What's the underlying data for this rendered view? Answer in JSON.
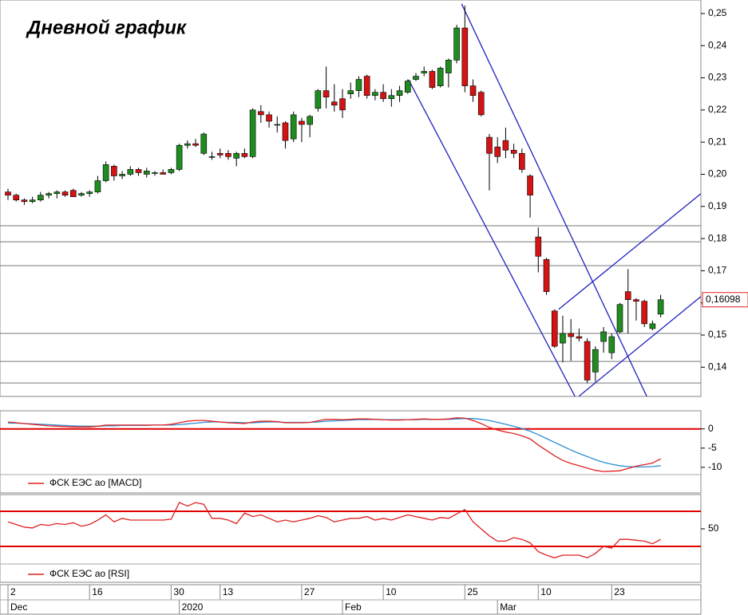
{
  "chart_data": [
    {
      "type": "candlestick",
      "title": "Дневной график",
      "categories": [
        "2",
        null,
        null,
        null,
        null,
        null,
        null,
        null,
        null,
        null,
        "16",
        null,
        null,
        null,
        null,
        null,
        null,
        null,
        null,
        null,
        "30",
        null,
        null,
        null,
        null,
        null,
        "13",
        null,
        null,
        null,
        null,
        null,
        null,
        null,
        null,
        null,
        "27",
        null,
        null,
        null,
        null,
        null,
        null,
        null,
        null,
        null,
        "10",
        null,
        null,
        null,
        null,
        null,
        null,
        null,
        null,
        null,
        "25",
        null,
        null,
        null,
        null,
        null,
        null,
        null,
        null,
        "10",
        null,
        null,
        null,
        null,
        null,
        null,
        null,
        null,
        "23",
        null,
        null,
        null,
        null,
        null,
        null
      ],
      "month_labels": [
        {
          "index": 0,
          "label": "Dec"
        },
        {
          "index": 21,
          "label": "2020"
        },
        {
          "index": 41,
          "label": "Feb"
        },
        {
          "index": 60,
          "label": "Mar"
        }
      ],
      "open": [
        0.1945,
        0.1935,
        0.192,
        0.1915,
        0.192,
        0.1935,
        0.194,
        0.1945,
        0.195,
        0.1935,
        0.194,
        0.1945,
        0.198,
        0.2025,
        0.1995,
        0.2,
        0.2015,
        0.2,
        0.2005,
        0.2005,
        0.2005,
        0.2015,
        0.209,
        0.2095,
        0.2065,
        0.2055,
        0.2065,
        0.2065,
        0.205,
        0.2065,
        0.2055,
        0.2195,
        0.2185,
        0.2155,
        0.216,
        0.211,
        0.2165,
        0.2155,
        0.2205,
        0.226,
        0.2225,
        0.2235,
        0.225,
        0.226,
        0.2305,
        0.2245,
        0.2255,
        0.2235,
        0.2245,
        0.2255,
        0.2295,
        0.2315,
        0.232,
        0.2275,
        0.2315,
        0.2355,
        0.2455,
        0.2275,
        0.2255,
        0.2115,
        0.2085,
        0.2105,
        0.2075,
        0.2065,
        0.1995,
        0.1805,
        0.1735,
        0.1575,
        0.1475,
        0.1505,
        0.1495,
        0.148,
        0.1385,
        0.148,
        0.1445,
        0.151,
        0.1635,
        0.161,
        0.1605,
        0.152,
        0.1565
      ],
      "high": [
        0.1955,
        0.194,
        0.1925,
        0.193,
        0.1945,
        0.1945,
        0.195,
        0.195,
        0.1955,
        0.1945,
        0.195,
        0.1995,
        0.204,
        0.203,
        0.201,
        0.2025,
        0.202,
        0.202,
        0.201,
        0.2015,
        0.202,
        0.2095,
        0.2105,
        0.211,
        0.213,
        0.207,
        0.208,
        0.2075,
        0.207,
        0.208,
        0.2205,
        0.2215,
        0.2195,
        0.218,
        0.2165,
        0.2195,
        0.2175,
        0.2185,
        0.2265,
        0.2335,
        0.228,
        0.2265,
        0.2285,
        0.2305,
        0.231,
        0.2265,
        0.228,
        0.2265,
        0.2275,
        0.2295,
        0.2315,
        0.2335,
        0.2325,
        0.2335,
        0.236,
        0.2465,
        0.2525,
        0.2295,
        0.226,
        0.2125,
        0.2115,
        0.2145,
        0.2095,
        0.208,
        0.2,
        0.1835,
        0.174,
        0.158,
        0.156,
        0.155,
        0.152,
        0.149,
        0.1465,
        0.1525,
        0.1505,
        0.16,
        0.1705,
        0.1615,
        0.161,
        0.1545,
        0.1625
      ],
      "low": [
        0.192,
        0.1915,
        0.1905,
        0.191,
        0.1915,
        0.1925,
        0.1925,
        0.193,
        0.193,
        0.193,
        0.193,
        0.194,
        0.1975,
        0.198,
        0.1985,
        0.1995,
        0.1995,
        0.199,
        0.1995,
        0.2,
        0.2,
        0.201,
        0.208,
        0.2085,
        0.206,
        0.2045,
        0.205,
        0.2045,
        0.2025,
        0.205,
        0.205,
        0.216,
        0.2145,
        0.213,
        0.208,
        0.21,
        0.21,
        0.2115,
        0.2195,
        0.2205,
        0.2195,
        0.2175,
        0.2235,
        0.224,
        0.2235,
        0.223,
        0.2225,
        0.221,
        0.2225,
        0.225,
        0.229,
        0.2305,
        0.2265,
        0.227,
        0.227,
        0.2345,
        0.2255,
        0.2225,
        0.218,
        0.195,
        0.2035,
        0.205,
        0.205,
        0.2005,
        0.1865,
        0.1695,
        0.1625,
        0.146,
        0.1415,
        0.142,
        0.148,
        0.135,
        0.1355,
        0.1445,
        0.1425,
        0.1505,
        0.1505,
        0.1545,
        0.1525,
        0.1515,
        0.1555
      ],
      "close": [
        0.1935,
        0.192,
        0.1915,
        0.192,
        0.1935,
        0.194,
        0.1945,
        0.1935,
        0.193,
        0.194,
        0.1945,
        0.198,
        0.203,
        0.1995,
        0.2,
        0.2015,
        0.2005,
        0.201,
        0.2005,
        0.2,
        0.2015,
        0.209,
        0.2095,
        0.209,
        0.2125,
        0.2055,
        0.206,
        0.2055,
        0.2065,
        0.2055,
        0.22,
        0.2185,
        0.2165,
        0.2155,
        0.2105,
        0.2185,
        0.2155,
        0.218,
        0.226,
        0.224,
        0.2215,
        0.22,
        0.226,
        0.2295,
        0.2245,
        0.2255,
        0.2235,
        0.2245,
        0.226,
        0.229,
        0.2305,
        0.232,
        0.227,
        0.233,
        0.2355,
        0.2455,
        0.2275,
        0.2245,
        0.2185,
        0.2065,
        0.2055,
        0.2075,
        0.2065,
        0.2015,
        0.1935,
        0.1745,
        0.1635,
        0.1465,
        0.1505,
        0.1495,
        0.149,
        0.136,
        0.1455,
        0.151,
        0.1495,
        0.1595,
        0.161,
        0.1605,
        0.1535,
        0.1535,
        0.16098
      ],
      "up_color": "#1e8c1e",
      "down_color": "#d41414",
      "last_price_label": "0,16098",
      "last_price_color": "#e02020",
      "support_levels": [
        0.184,
        0.179,
        0.1716,
        0.1505,
        0.1418,
        0.1351
      ],
      "trend_lines": [
        {
          "x": [
            55.6,
            78.3
          ],
          "y": [
            0.253,
            0.1309
          ]
        },
        {
          "x": [
            49.1,
            69.5
          ],
          "y": [
            0.2294,
            0.1309
          ]
        },
        {
          "x": [
            67.5,
            84.9
          ],
          "y": [
            0.158,
            0.1939
          ]
        },
        {
          "x": [
            70,
            84.9
          ],
          "y": [
            0.131,
            0.1619
          ]
        }
      ],
      "trend_color": "#2020c0",
      "ylim": [
        0.1309,
        0.2542
      ],
      "yticks": [
        {
          "value": 0.25,
          "label": "0,25"
        },
        {
          "value": 0.24,
          "label": "0,24"
        },
        {
          "value": 0.23,
          "label": "0,23"
        },
        {
          "value": 0.22,
          "label": "0,22"
        },
        {
          "value": 0.21,
          "label": "0,21"
        },
        {
          "value": 0.2,
          "label": "0,20"
        },
        {
          "value": 0.19,
          "label": "0,19"
        },
        {
          "value": 0.18,
          "label": "0,18"
        },
        {
          "value": 0.17,
          "label": "0,17"
        },
        {
          "value": 0.16,
          "label": "0,16"
        },
        {
          "value": 0.15,
          "label": "0,15"
        },
        {
          "value": 0.14,
          "label": "0,14"
        }
      ]
    },
    {
      "type": "line",
      "series": [
        {
          "name": "ФСК ЕЭС ао [MACD]",
          "color": "#e02020",
          "values": [
            1.8,
            1.6,
            1.4,
            1.2,
            1.0,
            0.8,
            0.7,
            0.6,
            0.5,
            0.5,
            0.5,
            0.7,
            1.0,
            1.0,
            1.0,
            1.0,
            1.0,
            1.0,
            1.0,
            1.0,
            1.2,
            1.6,
            2.0,
            2.2,
            2.2,
            2.0,
            1.8,
            1.6,
            1.5,
            1.4,
            1.8,
            2.0,
            2.0,
            1.9,
            1.6,
            1.6,
            1.6,
            1.7,
            2.1,
            2.5,
            2.5,
            2.4,
            2.5,
            2.6,
            2.6,
            2.5,
            2.4,
            2.3,
            2.3,
            2.4,
            2.5,
            2.6,
            2.5,
            2.5,
            2.6,
            2.9,
            2.8,
            2.2,
            1.4,
            0.4,
            -0.3,
            -0.8,
            -1.2,
            -1.8,
            -2.6,
            -4.2,
            -5.6,
            -7.0,
            -8.2,
            -9.0,
            -9.6,
            -10.2,
            -10.8,
            -11.1,
            -11.0,
            -10.9,
            -10.3,
            -9.7,
            -9.3,
            -8.9,
            -7.8
          ]
        },
        {
          "color": "#2a8fd8",
          "values": [
            1.5,
            1.5,
            1.4,
            1.3,
            1.2,
            1.1,
            1.0,
            0.9,
            0.8,
            0.7,
            0.7,
            0.7,
            0.8,
            0.8,
            0.9,
            0.9,
            0.9,
            0.9,
            1.0,
            1.0,
            1.0,
            1.1,
            1.3,
            1.5,
            1.7,
            1.8,
            1.8,
            1.7,
            1.7,
            1.6,
            1.6,
            1.7,
            1.8,
            1.8,
            1.7,
            1.7,
            1.7,
            1.7,
            1.8,
            2.0,
            2.1,
            2.2,
            2.3,
            2.4,
            2.4,
            2.5,
            2.4,
            2.4,
            2.4,
            2.4,
            2.4,
            2.5,
            2.5,
            2.5,
            2.5,
            2.6,
            2.7,
            2.7,
            2.5,
            2.2,
            1.7,
            1.2,
            0.7,
            0.1,
            -0.6,
            -1.5,
            -2.5,
            -3.5,
            -4.5,
            -5.5,
            -6.4,
            -7.2,
            -8.0,
            -8.7,
            -9.2,
            -9.6,
            -9.8,
            -9.9,
            -9.9,
            -9.8,
            -9.6
          ]
        }
      ],
      "levels": [
        0
      ],
      "level_color": "#e00000",
      "ylim": [
        -11.9,
        4.3
      ],
      "yticks": [
        0,
        -5,
        -10
      ]
    },
    {
      "type": "line",
      "series": [
        {
          "name": "ФСК ЕЭС ао [RSI]",
          "color": "#e02020",
          "values": [
            58,
            55,
            52,
            51,
            55,
            54,
            56,
            55,
            57,
            53,
            55,
            60,
            66,
            58,
            62,
            60,
            60,
            60,
            60,
            60,
            61,
            80,
            76,
            80,
            78,
            62,
            62,
            60,
            56,
            68,
            64,
            66,
            62,
            58,
            60,
            58,
            60,
            62,
            65,
            63,
            58,
            60,
            62,
            62,
            64,
            60,
            62,
            60,
            63,
            66,
            64,
            62,
            60,
            63,
            62,
            67,
            72,
            58,
            50,
            42,
            36,
            36,
            40,
            38,
            34,
            24,
            20,
            17,
            20,
            20,
            20,
            17,
            22,
            30,
            28,
            38,
            38,
            37,
            36,
            33,
            38
          ]
        }
      ],
      "levels": [
        70,
        30
      ],
      "level_color": "#e00000",
      "ylim": [
        11.8,
        87.3
      ],
      "yticks": [
        50
      ]
    }
  ]
}
